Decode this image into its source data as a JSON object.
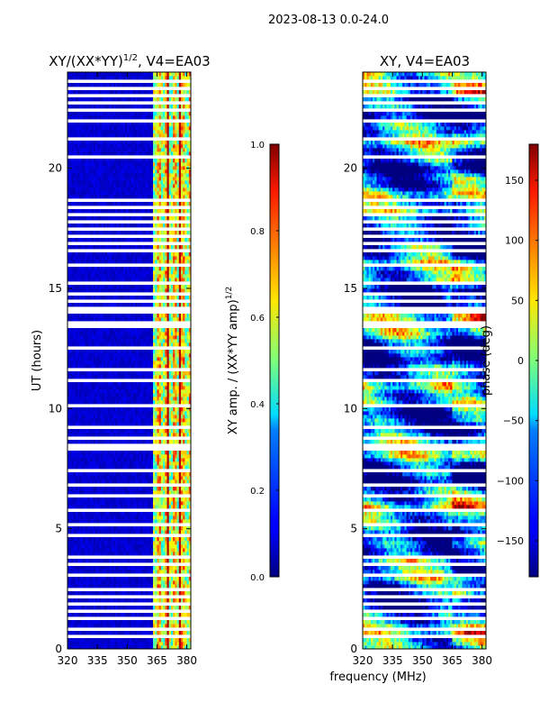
{
  "chart_data": {
    "suptitle": "2023-08-13 0.0-24.0",
    "shared_xlabel": "frequency (MHz)",
    "panels": [
      {
        "type": "heatmap",
        "title_prefix": "XY/(XX*YY)",
        "title_exp": "1/2",
        "title_suffix": ", V4=EA03",
        "ylabel": "UT (hours)",
        "xlim": [
          320,
          382
        ],
        "ylim": [
          0,
          24
        ],
        "xticks": [
          320,
          335,
          350,
          365,
          380
        ],
        "yticks": [
          0,
          5,
          10,
          15,
          20
        ],
        "colorbar": {
          "label_prefix": "XY amp. / (XX*YY amp)",
          "label_exp": "1/2",
          "range": [
            0.0,
            1.0
          ],
          "ticks": [
            "0.0",
            "0.2",
            "0.4",
            "0.6",
            "0.8",
            "1.0"
          ]
        }
      },
      {
        "type": "heatmap",
        "title_prefix": "XY, V4=EA03",
        "ylabel": "",
        "xlim": [
          320,
          382
        ],
        "ylim": [
          0,
          24
        ],
        "xticks": [
          320,
          335,
          350,
          365,
          380
        ],
        "yticks": [
          0,
          5,
          10,
          15,
          20
        ],
        "colorbar": {
          "label_prefix": "phase (deg)",
          "range": [
            -180,
            180
          ],
          "ticks": [
            "−150",
            "−100",
            "−50",
            "0",
            "50",
            "100",
            "150"
          ]
        }
      }
    ]
  }
}
